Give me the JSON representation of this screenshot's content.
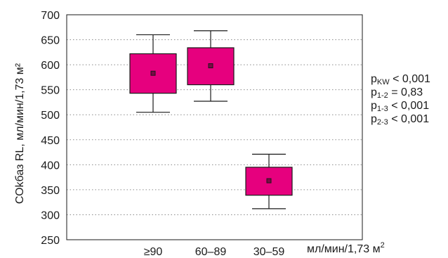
{
  "chart_data": {
    "type": "box",
    "ylabel": "СОkбаз RL, мл/мин/1,73 м²",
    "ylim": [
      250,
      700
    ],
    "yticks": [
      250,
      300,
      350,
      400,
      450,
      500,
      550,
      600,
      650,
      700
    ],
    "categories": [
      "≥90",
      "60–89",
      "30–59"
    ],
    "x_unit": {
      "text": "мл/мин/1,73 м",
      "sup": "2"
    },
    "boxes": [
      {
        "category": "≥90",
        "whisker_low": 505,
        "q1": 543,
        "median": 583,
        "q3": 622,
        "whisker_high": 660
      },
      {
        "category": "60–89",
        "whisker_low": 527,
        "q1": 560,
        "median": 598,
        "q3": 634,
        "whisker_high": 668
      },
      {
        "category": "30–59",
        "whisker_low": 312,
        "q1": 339,
        "median": 368,
        "q3": 395,
        "whisker_high": 421
      }
    ],
    "grid": true,
    "grid_style": "dotted",
    "box_color": "#e6007e",
    "stats_annotations": [
      {
        "p": "p",
        "sub": "KW",
        "rest": " < 0,001"
      },
      {
        "p": "p",
        "sub": "1-2",
        "rest": " = 0,83"
      },
      {
        "p": "p",
        "sub": "1-3",
        "rest": " < 0,001"
      },
      {
        "p": "p",
        "sub": "2-3",
        "rest": " < 0,001"
      }
    ]
  }
}
